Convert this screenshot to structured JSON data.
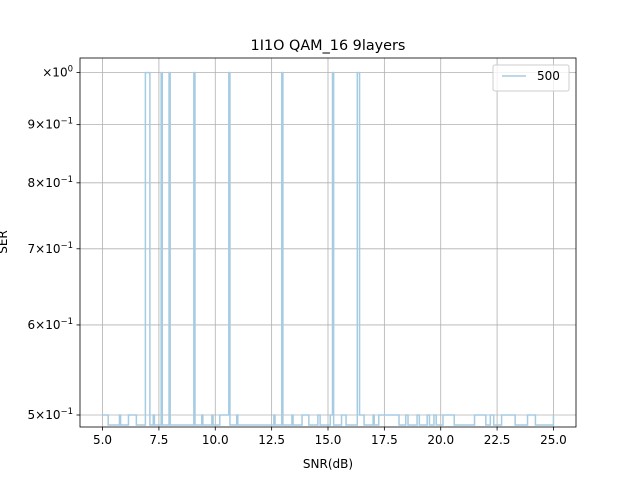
{
  "chart_data": {
    "type": "line",
    "title": "1I1O QAM_16 9layers",
    "xlabel": "SNR(dB)",
    "ylabel": "SER",
    "yscale": "log",
    "xlim": [
      4.0,
      26.0
    ],
    "ylim": [
      0.488,
      1.03
    ],
    "grid": true,
    "legend_position": "top-right",
    "x_ticks": [
      5.0,
      7.5,
      10.0,
      12.5,
      15.0,
      17.5,
      20.0,
      22.5,
      25.0
    ],
    "x_tick_labels": [
      "5.0",
      "7.5",
      "10.0",
      "12.5",
      "15.0",
      "17.5",
      "20.0",
      "22.5",
      "25.0"
    ],
    "y_ticks": [
      {
        "value": 0.5,
        "base": "5",
        "exp": "−1"
      },
      {
        "value": 0.6,
        "base": "6",
        "exp": "−1"
      },
      {
        "value": 0.7,
        "base": "7",
        "exp": "−1"
      },
      {
        "value": 0.8,
        "base": "8",
        "exp": "−1"
      },
      {
        "value": 0.9,
        "base": "9",
        "exp": "−1"
      },
      {
        "value": 1.0,
        "base": "10",
        "exp": "0"
      }
    ],
    "y_tick_prefix": "×10",
    "series": [
      {
        "name": "500",
        "color": "#a6cce3",
        "step": "post",
        "points": [
          [
            5.0,
            0.5
          ],
          [
            5.25,
            0.49
          ],
          [
            5.75,
            0.5
          ],
          [
            5.8,
            0.49
          ],
          [
            6.15,
            0.5
          ],
          [
            6.5,
            0.49
          ],
          [
            6.9,
            1.0
          ],
          [
            7.1,
            0.49
          ],
          [
            7.25,
            0.5
          ],
          [
            7.3,
            0.49
          ],
          [
            7.6,
            1.0
          ],
          [
            7.65,
            0.49
          ],
          [
            7.95,
            1.0
          ],
          [
            8.0,
            0.49
          ],
          [
            9.05,
            1.0
          ],
          [
            9.1,
            0.49
          ],
          [
            9.4,
            0.5
          ],
          [
            9.45,
            0.49
          ],
          [
            9.85,
            0.5
          ],
          [
            9.9,
            0.49
          ],
          [
            10.2,
            0.5
          ],
          [
            10.6,
            1.0
          ],
          [
            10.65,
            0.49
          ],
          [
            10.95,
            0.5
          ],
          [
            11.0,
            0.49
          ],
          [
            12.6,
            0.5
          ],
          [
            12.65,
            0.49
          ],
          [
            12.95,
            1.0
          ],
          [
            13.0,
            0.49
          ],
          [
            13.4,
            0.5
          ],
          [
            13.45,
            0.49
          ],
          [
            13.85,
            0.5
          ],
          [
            14.15,
            0.49
          ],
          [
            14.55,
            0.5
          ],
          [
            14.65,
            0.49
          ],
          [
            15.1,
            0.5
          ],
          [
            15.2,
            1.0
          ],
          [
            15.25,
            0.49
          ],
          [
            15.6,
            0.5
          ],
          [
            15.8,
            0.49
          ],
          [
            16.3,
            1.0
          ],
          [
            16.4,
            0.5
          ],
          [
            16.6,
            0.49
          ],
          [
            17.0,
            0.5
          ],
          [
            17.05,
            0.49
          ],
          [
            17.25,
            0.5
          ],
          [
            18.15,
            0.49
          ],
          [
            18.45,
            0.5
          ],
          [
            18.55,
            0.49
          ],
          [
            18.95,
            0.5
          ],
          [
            19.05,
            0.49
          ],
          [
            19.4,
            0.5
          ],
          [
            19.5,
            0.49
          ],
          [
            19.7,
            0.5
          ],
          [
            19.8,
            0.49
          ],
          [
            20.1,
            0.5
          ],
          [
            20.6,
            0.49
          ],
          [
            21.5,
            0.5
          ],
          [
            22.0,
            0.49
          ],
          [
            22.2,
            0.5
          ],
          [
            22.35,
            0.49
          ],
          [
            22.7,
            0.5
          ],
          [
            23.3,
            0.49
          ],
          [
            23.85,
            0.5
          ],
          [
            24.2,
            0.49
          ],
          [
            25.0,
            0.5
          ]
        ]
      }
    ]
  }
}
